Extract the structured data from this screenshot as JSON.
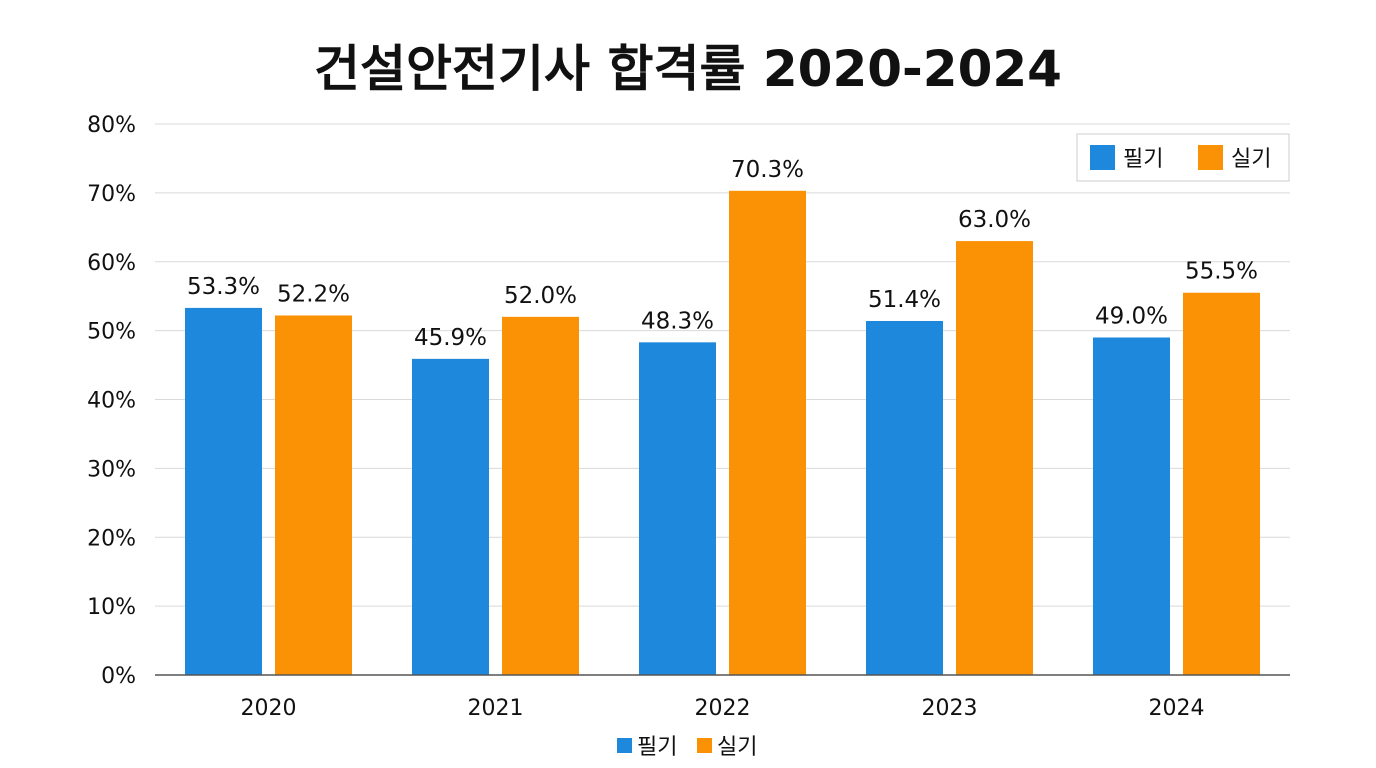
{
  "chart_data": {
    "type": "bar",
    "title": "건설안전기사 합격률 2020-2024",
    "categories": [
      "2020",
      "2021",
      "2022",
      "2023",
      "2024"
    ],
    "series": [
      {
        "name": "필기",
        "color": "#1e88dc",
        "values": [
          53.3,
          45.9,
          48.3,
          51.4,
          49.0
        ],
        "labels": [
          "53.3%",
          "45.9%",
          "48.3%",
          "51.4%",
          "49.0%"
        ]
      },
      {
        "name": "실기",
        "color": "#fb9205",
        "values": [
          52.2,
          52.0,
          70.3,
          63.0,
          55.5
        ],
        "labels": [
          "52.2%",
          "52.0%",
          "70.3%",
          "63.0%",
          "55.5%"
        ]
      }
    ],
    "ylim": [
      0,
      80
    ],
    "yticks": [
      0,
      10,
      20,
      30,
      40,
      50,
      60,
      70,
      80
    ],
    "ytick_labels": [
      "0%",
      "10%",
      "20%",
      "30%",
      "40%",
      "50%",
      "60%",
      "70%",
      "80%"
    ],
    "grid": true,
    "legend": {
      "top_right": [
        "필기",
        "실기"
      ],
      "bottom_center": [
        "필기",
        "실기"
      ]
    }
  }
}
